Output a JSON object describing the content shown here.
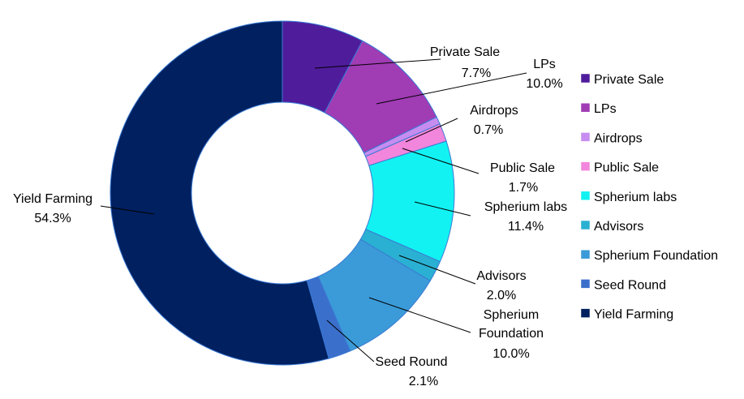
{
  "chart_data": {
    "type": "pie",
    "donut": true,
    "title": "",
    "legend_position": "right",
    "slices": [
      {
        "name": "Private Sale",
        "value": 7.7,
        "label": "7.7%",
        "color": "#4f1c9c"
      },
      {
        "name": "LPs",
        "value": 10.0,
        "label": "10.0%",
        "color": "#a03cb4"
      },
      {
        "name": "Airdrops",
        "value": 0.7,
        "label": "0.7%",
        "color": "#c78cf0"
      },
      {
        "name": "Public Sale",
        "value": 1.7,
        "label": "1.7%",
        "color": "#f285dc"
      },
      {
        "name": "Spherium labs",
        "value": 11.4,
        "label": "11.4%",
        "color": "#12f2f2"
      },
      {
        "name": "Advisors",
        "value": 2.0,
        "label": "2.0%",
        "color": "#2ab0d2"
      },
      {
        "name": "Spherium Foundation",
        "value": 10.0,
        "label": "10.0%",
        "color": "#3b9bd8"
      },
      {
        "name": "Seed Round",
        "value": 2.1,
        "label": "2.1%",
        "color": "#3a6fcb"
      },
      {
        "name": "Yield Farming",
        "value": 54.3,
        "label": "54.3%",
        "color": "#002060"
      }
    ]
  }
}
